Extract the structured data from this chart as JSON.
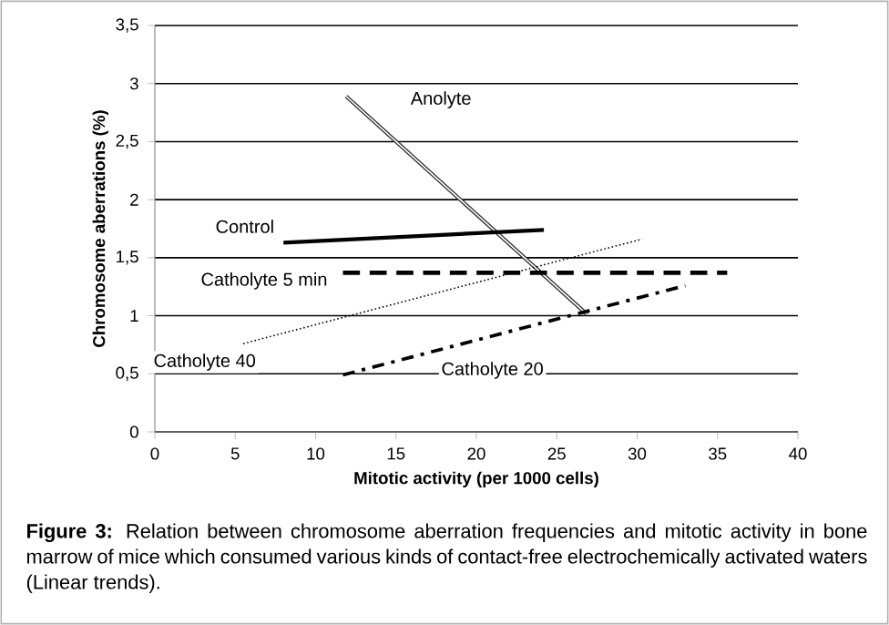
{
  "chart_data": {
    "type": "line",
    "xlabel": "Mitotic activity (per 1000 cells)",
    "ylabel": "Chromosome aberrations (%)",
    "xlim": [
      0,
      40
    ],
    "xticks": [
      0,
      5,
      10,
      15,
      20,
      25,
      30,
      35,
      40
    ],
    "ylim": [
      0,
      3.5
    ],
    "yticks": [
      0,
      {
        "value": 0.5,
        "label": "0,5"
      },
      1,
      {
        "value": 1.5,
        "label": "1,5"
      },
      2,
      {
        "value": 2.5,
        "label": "2,5"
      },
      3,
      {
        "value": 3.5,
        "label": "3,5"
      }
    ],
    "grid": "y",
    "legend": false,
    "marker": "none",
    "series": [
      {
        "name": "Anolyte",
        "color": "#333333",
        "line_style": "solid",
        "x": [
          11.9,
          26.9
        ],
        "values": [
          2.89,
          1.01
        ]
      },
      {
        "name": "Control",
        "color": "#000000",
        "line_style": "solid",
        "x": [
          8.0,
          24.2
        ],
        "values": [
          1.63,
          1.74
        ]
      },
      {
        "name": "Catholyte 5 min",
        "color": "#000000",
        "line_style": "dashed",
        "x": [
          11.7,
          35.6
        ],
        "values": [
          1.37,
          1.37
        ]
      },
      {
        "name": "Catholyte 40",
        "color": "#000000",
        "line_style": "dotted",
        "x": [
          5.5,
          30.3
        ],
        "values": [
          0.76,
          1.66
        ]
      },
      {
        "name": "Catholyte 20",
        "color": "#000000",
        "line_style": "dashdot",
        "x": [
          11.7,
          33.0
        ],
        "values": [
          0.49,
          1.26
        ]
      }
    ],
    "annotations": [
      "**Figure 3:** Relation between chromosome aberration frequencies and mitotic activity in bone marrow of mice which consumed various kinds of contact-free electrochemically activated waters (Linear trends)."
    ]
  }
}
